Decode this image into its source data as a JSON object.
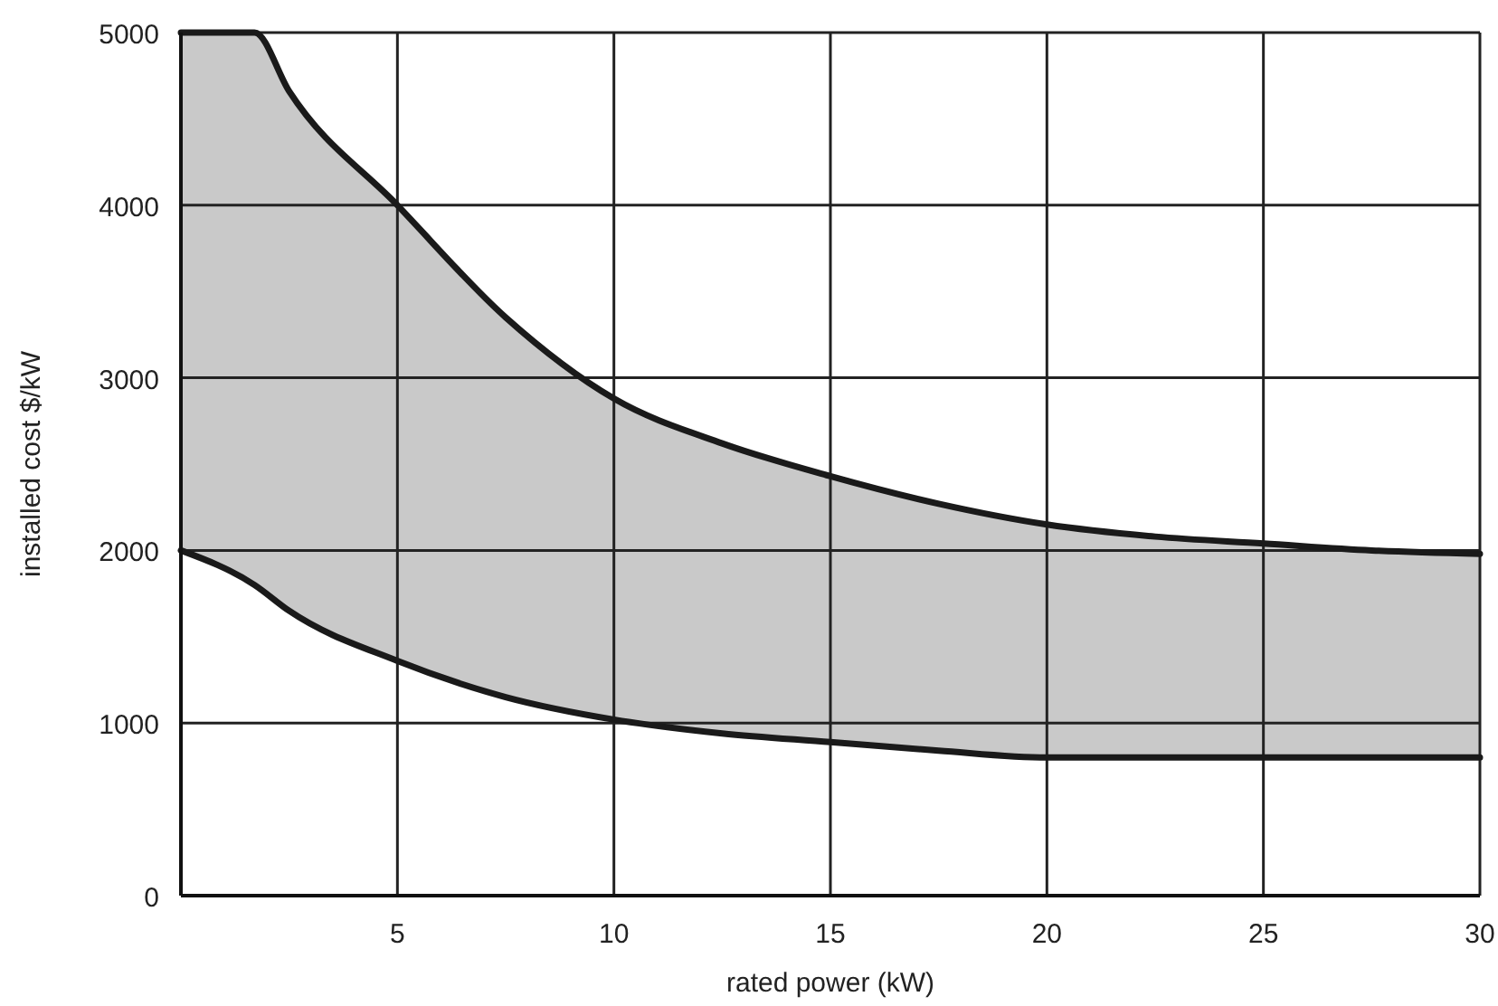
{
  "chart_data": {
    "type": "line",
    "xlabel": "rated power (kW)",
    "ylabel": "installed cost $/kW",
    "x": [
      0,
      1.7,
      2.5,
      5,
      7.5,
      10,
      12.5,
      15,
      17.5,
      20,
      22.5,
      25,
      27.5,
      30
    ],
    "series": [
      {
        "color": "#1a1a1a",
        "values": [
          5000,
          5000,
          4660,
          4000,
          3350,
          2880,
          2620,
          2430,
          2270,
          2150,
          2080,
          2040,
          2000,
          1980
        ],
        "lower": [
          2000,
          1800,
          1650,
          1360,
          1150,
          1020,
          940,
          890,
          840,
          800,
          800,
          800,
          800,
          800
        ],
        "upper": [
          5000,
          5000,
          4660,
          4000,
          3350,
          2880,
          2620,
          2430,
          2270,
          2150,
          2080,
          2040,
          2000,
          1980
        ]
      },
      {
        "color": "#1a1a1a",
        "values": [
          2000,
          1800,
          1650,
          1360,
          1150,
          1020,
          940,
          890,
          840,
          800,
          800,
          800,
          800,
          800
        ]
      }
    ],
    "xlim": [
      0,
      30
    ],
    "ylim": [
      0,
      5000
    ],
    "xticks": [
      5,
      10,
      15,
      20,
      25,
      30
    ],
    "yticks": [
      0,
      1000,
      2000,
      3000,
      4000,
      5000
    ],
    "grid": true
  }
}
